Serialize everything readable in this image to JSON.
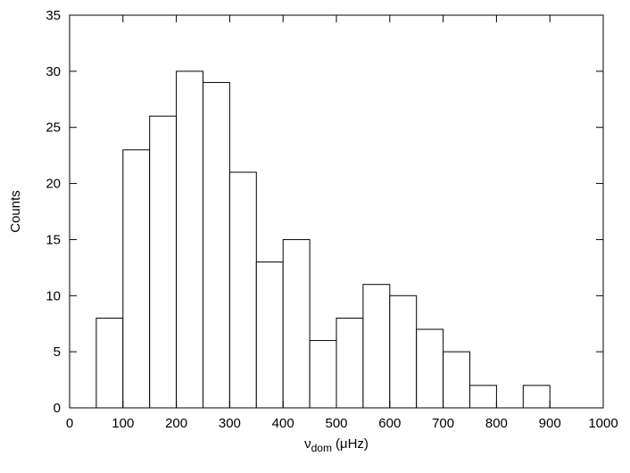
{
  "chart_data": {
    "type": "histogram",
    "xlabel": {
      "symbol": "ν",
      "subscript": "dom",
      "unit": "(μHz)"
    },
    "ylabel": "Counts",
    "bins": [
      50,
      100,
      150,
      200,
      250,
      300,
      350,
      400,
      450,
      500,
      550,
      600,
      650,
      700,
      750,
      800,
      850,
      900
    ],
    "values": [
      8,
      23,
      26,
      30,
      29,
      21,
      13,
      15,
      6,
      8,
      11,
      10,
      7,
      5,
      2,
      0,
      2
    ],
    "color": "#ffffff",
    "xlim": [
      0,
      1000
    ],
    "xticks": [
      0,
      100,
      200,
      300,
      400,
      500,
      600,
      700,
      800,
      900,
      1000
    ],
    "ylim": [
      0,
      35
    ],
    "yticks": [
      0,
      5,
      10,
      15,
      20,
      25,
      30,
      35
    ]
  }
}
